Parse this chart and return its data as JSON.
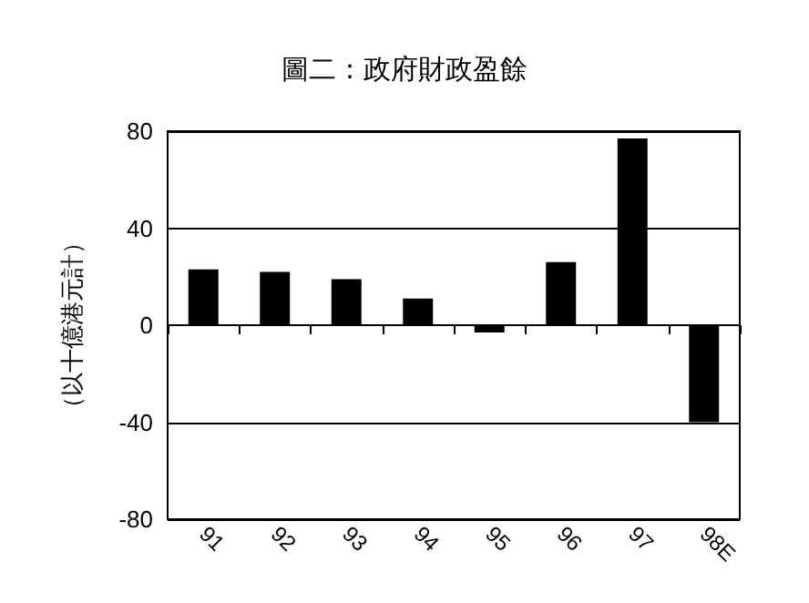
{
  "chart_data": {
    "type": "bar",
    "title": "圖二：政府財政盈餘",
    "ylabel": "（以十億港元計）",
    "categories": [
      "91",
      "92",
      "93",
      "94",
      "95",
      "96",
      "97",
      "98E"
    ],
    "values": [
      23,
      22,
      19,
      11,
      -3,
      26,
      77,
      -40
    ],
    "color": "#000000",
    "ylim": [
      -80,
      80
    ],
    "yticks": [
      -80,
      -40,
      0,
      40,
      80
    ],
    "grid": "y"
  }
}
